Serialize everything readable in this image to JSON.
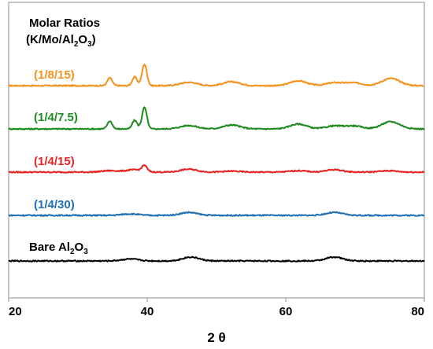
{
  "chart_data": {
    "type": "line",
    "title": "",
    "xlabel": "2 θ",
    "ylabel": "",
    "xlim": [
      20,
      80
    ],
    "x_ticks": [
      20,
      40,
      60,
      80
    ],
    "grid": false,
    "legend": {
      "heading_line1": "Molar Ratios",
      "heading_line2_prefix": "(K/Mo/Al",
      "heading_line2_sub": "2",
      "heading_line2_mid": "O",
      "heading_line2_sub2": "3",
      "heading_line2_suffix": ")"
    },
    "series": [
      {
        "name": "(1/8/15)",
        "color": "#f5921e",
        "peaks": [
          [
            34.6,
            1.6
          ],
          [
            38.2,
            1.8
          ],
          [
            39.6,
            4.4
          ],
          [
            46,
            0.7
          ],
          [
            52.2,
            0.8
          ],
          [
            61.8,
            1.0
          ],
          [
            67,
            0.6
          ],
          [
            69.8,
            0.6
          ],
          [
            74.8,
            1.0
          ],
          [
            75.8,
            0.6
          ]
        ]
      },
      {
        "name": "(1/4/7.5)",
        "color": "#1e8a1e",
        "peaks": [
          [
            34.6,
            1.6
          ],
          [
            38.2,
            1.8
          ],
          [
            39.6,
            4.4
          ],
          [
            46,
            0.7
          ],
          [
            52.2,
            0.8
          ],
          [
            61.8,
            1.0
          ],
          [
            67,
            0.6
          ],
          [
            69.8,
            0.6
          ],
          [
            74.8,
            1.0
          ],
          [
            75.8,
            0.6
          ]
        ]
      },
      {
        "name": "(1/4/15)",
        "color": "#e52421",
        "peaks": [
          [
            34.6,
            0.3
          ],
          [
            38.2,
            0.5
          ],
          [
            39.6,
            1.2
          ],
          [
            46,
            0.6
          ],
          [
            52.2,
            0.2
          ],
          [
            61.8,
            0.3
          ],
          [
            67,
            0.5
          ],
          [
            74.8,
            0.3
          ]
        ]
      },
      {
        "name": "(1/4/30)",
        "color": "#1f6fb2",
        "peaks": [
          [
            37.5,
            0.3
          ],
          [
            46,
            0.6
          ],
          [
            67,
            0.6
          ]
        ]
      },
      {
        "name_prefix": "Bare Al",
        "name_sub": "2",
        "name_mid": "O",
        "name_sub2": "3",
        "color": "#000000",
        "peaks": [
          [
            37.5,
            0.4
          ],
          [
            46.3,
            0.8
          ],
          [
            67,
            0.8
          ]
        ]
      }
    ]
  }
}
